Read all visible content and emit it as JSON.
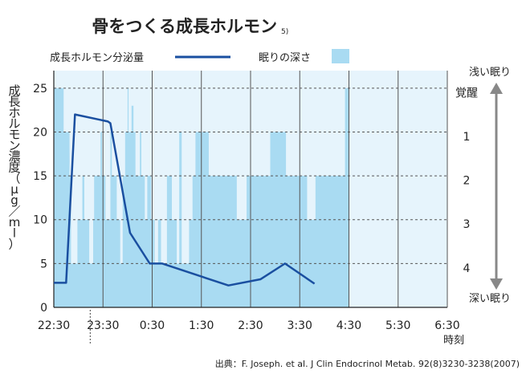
{
  "chart_data": {
    "type": "line+area",
    "title": "骨をつくる成長ホルモン",
    "title_superscript": "5)",
    "legend": [
      {
        "label": "成長ホルモン分泌量",
        "kind": "line",
        "color": "#1a4fa0"
      },
      {
        "label": "眠りの深さ",
        "kind": "area",
        "color": "#a9dbf2"
      }
    ],
    "ylabel": "成長ホルモン濃度（μg／ml）",
    "xlabel": "時刻",
    "x_ticks": [
      "22:30",
      "23:30",
      "0:30",
      "1:30",
      "2:30",
      "3:30",
      "4:30",
      "5:30",
      "6:30"
    ],
    "xlim": [
      0,
      8
    ],
    "y_ticks": [
      0,
      5,
      10,
      15,
      20,
      25
    ],
    "ylim": [
      0,
      27
    ],
    "right_axis": {
      "ticks": [
        {
          "label": "覚醒",
          "value": 24.5
        },
        {
          "label": "1",
          "value": 19.5
        },
        {
          "label": "2",
          "value": 14.5
        },
        {
          "label": "3",
          "value": 9.5
        },
        {
          "label": "4",
          "value": 4.5
        }
      ],
      "top_label": "浅い眠り",
      "bottom_label": "深い眠り"
    },
    "hormone_series": {
      "name": "成長ホルモン分泌量",
      "x": [
        0,
        0.25,
        0.43,
        1.1,
        1.15,
        1.55,
        1.95,
        2.2,
        3.55,
        4.2,
        4.7,
        5.3
      ],
      "y": [
        2.8,
        2.8,
        22,
        21.2,
        21,
        8.5,
        5,
        5,
        2.5,
        3.2,
        5,
        2.7
      ]
    },
    "sleep_depth_series": {
      "name": "眠りの深さ",
      "steps": [
        [
          0,
          25
        ],
        [
          0.2,
          20
        ],
        [
          0.32,
          15
        ],
        [
          0.35,
          5
        ],
        [
          0.48,
          10
        ],
        [
          0.58,
          15
        ],
        [
          0.62,
          10
        ],
        [
          0.72,
          5
        ],
        [
          0.8,
          10
        ],
        [
          0.82,
          15
        ],
        [
          0.95,
          20
        ],
        [
          0.98,
          15
        ],
        [
          1.05,
          10
        ],
        [
          1.15,
          20
        ],
        [
          1.18,
          15
        ],
        [
          1.28,
          10
        ],
        [
          1.35,
          5
        ],
        [
          1.4,
          15
        ],
        [
          1.45,
          20
        ],
        [
          1.5,
          25
        ],
        [
          1.52,
          20
        ],
        [
          1.58,
          23
        ],
        [
          1.62,
          20
        ],
        [
          1.66,
          15
        ],
        [
          1.75,
          20
        ],
        [
          1.78,
          15
        ],
        [
          1.85,
          10
        ],
        [
          1.9,
          15
        ],
        [
          1.98,
          10
        ],
        [
          2.05,
          5
        ],
        [
          2.12,
          10
        ],
        [
          2.18,
          5
        ],
        [
          2.3,
          15
        ],
        [
          2.4,
          10
        ],
        [
          2.5,
          5
        ],
        [
          2.55,
          20
        ],
        [
          2.6,
          5
        ],
        [
          2.75,
          10
        ],
        [
          2.82,
          15
        ],
        [
          2.88,
          20
        ],
        [
          3.15,
          15
        ],
        [
          3.72,
          10
        ],
        [
          3.92,
          15
        ],
        [
          4.4,
          20
        ],
        [
          4.72,
          15
        ],
        [
          5.15,
          10
        ],
        [
          5.32,
          15
        ],
        [
          5.92,
          25
        ],
        [
          6.0,
          25
        ]
      ]
    },
    "source": "出典：F. Joseph. et al. J Clin Endocrinol Metab. 92(8)3230-3238(2007)"
  }
}
